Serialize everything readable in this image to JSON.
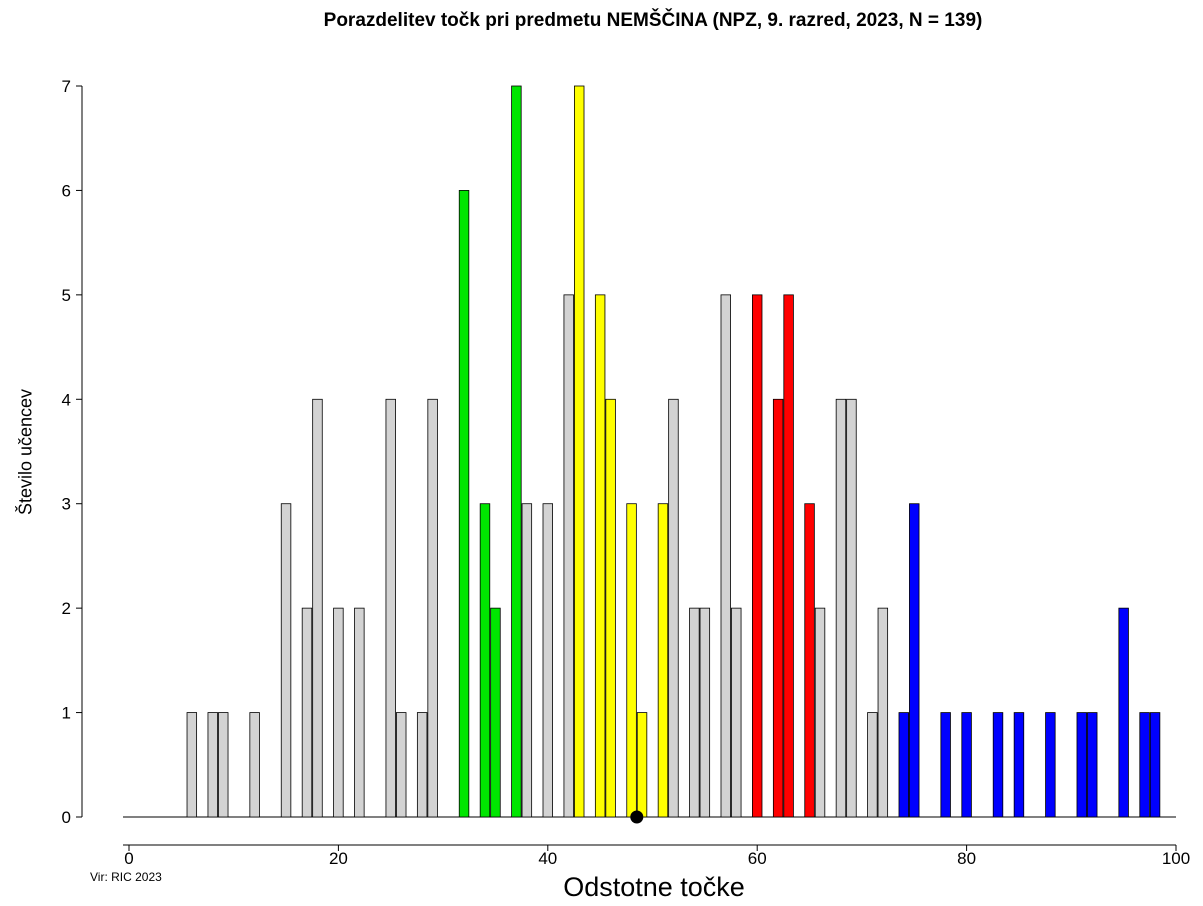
{
  "chart_data": {
    "type": "bar",
    "title": "Porazdelitev točk pri predmetu NEMŠČINA (NPZ, 9. razred, 2023, N = 139)",
    "xlabel": "Odstotne točke",
    "ylabel": "Število učencev",
    "source": "Vir: RIC 2023",
    "xlim": [
      0,
      100
    ],
    "ylim": [
      0,
      7
    ],
    "xticks": [
      0,
      20,
      40,
      60,
      80,
      100
    ],
    "yticks": [
      0,
      1,
      2,
      3,
      4,
      5,
      6,
      7
    ],
    "grid": false,
    "colors": {
      "gray": "#d3d3d3",
      "green": "#00e600",
      "yellow": "#ffff00",
      "red": "#ff0000",
      "blue": "#0000ff"
    },
    "marker": {
      "x": 48.5,
      "y": 0
    },
    "bars": [
      {
        "x": 6,
        "y": 1,
        "group": "gray"
      },
      {
        "x": 8,
        "y": 1,
        "group": "gray"
      },
      {
        "x": 9,
        "y": 1,
        "group": "gray"
      },
      {
        "x": 12,
        "y": 1,
        "group": "gray"
      },
      {
        "x": 15,
        "y": 3,
        "group": "gray"
      },
      {
        "x": 17,
        "y": 2,
        "group": "gray"
      },
      {
        "x": 18,
        "y": 4,
        "group": "gray"
      },
      {
        "x": 20,
        "y": 2,
        "group": "gray"
      },
      {
        "x": 22,
        "y": 2,
        "group": "gray"
      },
      {
        "x": 25,
        "y": 4,
        "group": "gray"
      },
      {
        "x": 26,
        "y": 1,
        "group": "gray"
      },
      {
        "x": 28,
        "y": 1,
        "group": "gray"
      },
      {
        "x": 29,
        "y": 4,
        "group": "gray"
      },
      {
        "x": 32,
        "y": 6,
        "group": "green"
      },
      {
        "x": 34,
        "y": 3,
        "group": "green"
      },
      {
        "x": 35,
        "y": 2,
        "group": "green"
      },
      {
        "x": 37,
        "y": 7,
        "group": "green"
      },
      {
        "x": 38,
        "y": 3,
        "group": "gray"
      },
      {
        "x": 40,
        "y": 3,
        "group": "gray"
      },
      {
        "x": 42,
        "y": 5,
        "group": "gray"
      },
      {
        "x": 43,
        "y": 7,
        "group": "yellow"
      },
      {
        "x": 45,
        "y": 5,
        "group": "yellow"
      },
      {
        "x": 46,
        "y": 4,
        "group": "yellow"
      },
      {
        "x": 48,
        "y": 3,
        "group": "yellow"
      },
      {
        "x": 49,
        "y": 1,
        "group": "yellow"
      },
      {
        "x": 51,
        "y": 3,
        "group": "yellow"
      },
      {
        "x": 52,
        "y": 4,
        "group": "gray"
      },
      {
        "x": 54,
        "y": 2,
        "group": "gray"
      },
      {
        "x": 55,
        "y": 2,
        "group": "gray"
      },
      {
        "x": 57,
        "y": 5,
        "group": "gray"
      },
      {
        "x": 58,
        "y": 2,
        "group": "gray"
      },
      {
        "x": 60,
        "y": 5,
        "group": "red"
      },
      {
        "x": 62,
        "y": 4,
        "group": "red"
      },
      {
        "x": 63,
        "y": 5,
        "group": "red"
      },
      {
        "x": 65,
        "y": 3,
        "group": "red"
      },
      {
        "x": 66,
        "y": 2,
        "group": "gray"
      },
      {
        "x": 68,
        "y": 4,
        "group": "gray"
      },
      {
        "x": 69,
        "y": 4,
        "group": "gray"
      },
      {
        "x": 71,
        "y": 1,
        "group": "gray"
      },
      {
        "x": 72,
        "y": 2,
        "group": "gray"
      },
      {
        "x": 74,
        "y": 1,
        "group": "blue"
      },
      {
        "x": 75,
        "y": 3,
        "group": "blue"
      },
      {
        "x": 78,
        "y": 1,
        "group": "blue"
      },
      {
        "x": 80,
        "y": 1,
        "group": "blue"
      },
      {
        "x": 83,
        "y": 1,
        "group": "blue"
      },
      {
        "x": 85,
        "y": 1,
        "group": "blue"
      },
      {
        "x": 88,
        "y": 1,
        "group": "blue"
      },
      {
        "x": 91,
        "y": 1,
        "group": "blue"
      },
      {
        "x": 92,
        "y": 1,
        "group": "blue"
      },
      {
        "x": 95,
        "y": 2,
        "group": "blue"
      },
      {
        "x": 97,
        "y": 1,
        "group": "blue"
      },
      {
        "x": 98,
        "y": 1,
        "group": "blue"
      }
    ]
  }
}
